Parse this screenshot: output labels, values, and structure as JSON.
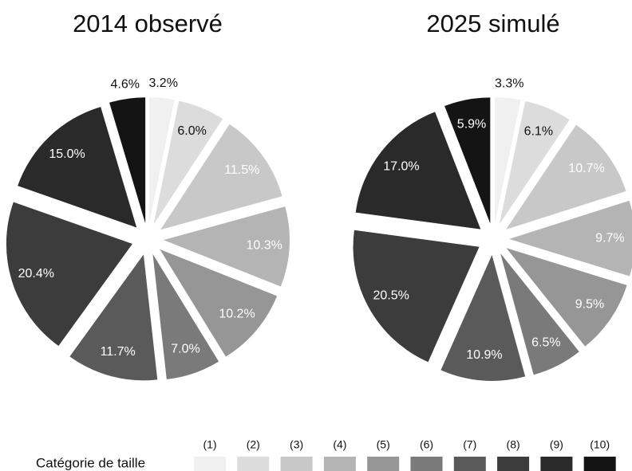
{
  "legend": {
    "title": "Catégorie de taille",
    "categories": [
      "(1)",
      "(2)",
      "(3)",
      "(4)",
      "(5)",
      "(6)",
      "(7)",
      "(8)",
      "(9)",
      "(10)"
    ],
    "colors": [
      "#f0f0f0",
      "#dcdcdc",
      "#c8c8c8",
      "#b4b4b4",
      "#969696",
      "#7a7a7a",
      "#5a5a5a",
      "#3c3c3c",
      "#2a2a2a",
      "#141414"
    ]
  },
  "chart_data": [
    {
      "type": "pie",
      "title": "2014 observé",
      "values": [
        3.2,
        6.0,
        11.5,
        10.3,
        10.2,
        7.0,
        11.7,
        20.4,
        15.0,
        4.6
      ],
      "value_labels": [
        "3.2%",
        "6.0%",
        "11.5%",
        "10.3%",
        "10.2%",
        "7.0%",
        "11.7%",
        "20.4%",
        "15.0%",
        "4.6%"
      ]
    },
    {
      "type": "pie",
      "title": "2025 simulé",
      "values": [
        3.3,
        6.1,
        10.7,
        9.7,
        9.5,
        6.5,
        10.9,
        20.5,
        17.0,
        5.9
      ],
      "value_labels": [
        "3.3%",
        "6.1%",
        "10.7%",
        "9.7%",
        "9.5%",
        "6.5%",
        "10.9%",
        "20.5%",
        "17.0%",
        "5.9%"
      ]
    }
  ]
}
